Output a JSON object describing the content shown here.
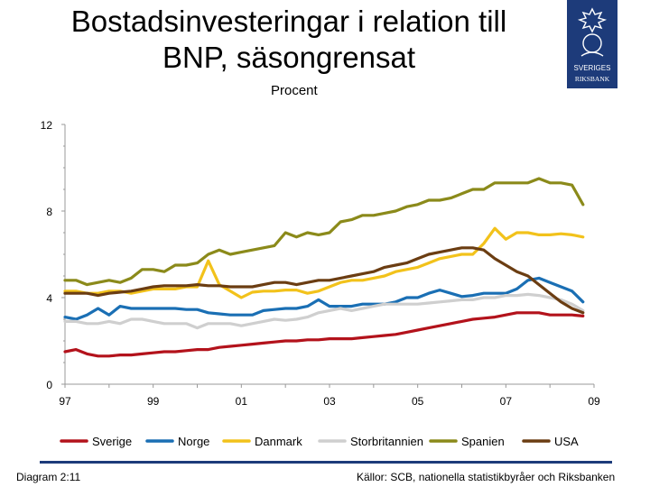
{
  "header": {
    "title_line1": "Bostadsinvesteringar i relation till",
    "title_line2": "BNP, säsongrensat",
    "unit": "Procent"
  },
  "logo": {
    "text_line1": "SVERIGES",
    "text_line2": "RIKSBANK"
  },
  "footer": {
    "diagram_label": "Diagram 2:11",
    "sources": "Källor: SCB, nationella statistikbyråer och Riksbanken"
  },
  "colors": {
    "Sverige": "#b3121b",
    "Norge": "#1a6fb4",
    "Danmark": "#f2c21b",
    "Storbritannien": "#cfcfcf",
    "Spanien": "#8b8a1a",
    "USA": "#6b3d12",
    "axis": "#999999",
    "brand": "#1d3b7a"
  },
  "chart_data": {
    "type": "line",
    "title": "Bostadsinvesteringar i relation till BNP, säsongrensat",
    "ylabel": "Procent",
    "xlabel": "",
    "xlim": [
      1997,
      2009
    ],
    "ylim": [
      0,
      12
    ],
    "x_ticks": [
      1997,
      1999,
      2001,
      2003,
      2005,
      2007,
      2009
    ],
    "x_tick_labels": [
      "97",
      "99",
      "01",
      "03",
      "05",
      "07",
      "09"
    ],
    "y_ticks": [
      0,
      4,
      8,
      12
    ],
    "y_tick_labels": [
      "0",
      "4",
      "8",
      "12"
    ],
    "legend_position": "bottom",
    "x": [
      1997.0,
      1997.25,
      1997.5,
      1997.75,
      1998.0,
      1998.25,
      1998.5,
      1998.75,
      1999.0,
      1999.25,
      1999.5,
      1999.75,
      2000.0,
      2000.25,
      2000.5,
      2000.75,
      2001.0,
      2001.25,
      2001.5,
      2001.75,
      2002.0,
      2002.25,
      2002.5,
      2002.75,
      2003.0,
      2003.25,
      2003.5,
      2003.75,
      2004.0,
      2004.25,
      2004.5,
      2004.75,
      2005.0,
      2005.25,
      2005.5,
      2005.75,
      2006.0,
      2006.25,
      2006.5,
      2006.75,
      2007.0,
      2007.25,
      2007.5,
      2007.75,
      2008.0,
      2008.25,
      2008.5,
      2008.75
    ],
    "series": [
      {
        "name": "Sverige",
        "values": [
          1.5,
          1.6,
          1.4,
          1.3,
          1.3,
          1.35,
          1.35,
          1.4,
          1.45,
          1.5,
          1.5,
          1.55,
          1.6,
          1.6,
          1.7,
          1.75,
          1.8,
          1.85,
          1.9,
          1.95,
          2.0,
          2.0,
          2.05,
          2.05,
          2.1,
          2.1,
          2.1,
          2.15,
          2.2,
          2.25,
          2.3,
          2.4,
          2.5,
          2.6,
          2.7,
          2.8,
          2.9,
          3.0,
          3.05,
          3.1,
          3.2,
          3.3,
          3.3,
          3.3,
          3.2,
          3.2,
          3.2,
          3.15
        ]
      },
      {
        "name": "Norge",
        "values": [
          3.1,
          3.0,
          3.2,
          3.5,
          3.2,
          3.6,
          3.5,
          3.5,
          3.5,
          3.5,
          3.5,
          3.45,
          3.45,
          3.3,
          3.25,
          3.2,
          3.2,
          3.2,
          3.4,
          3.45,
          3.5,
          3.5,
          3.6,
          3.9,
          3.6,
          3.6,
          3.6,
          3.7,
          3.7,
          3.7,
          3.8,
          4.0,
          4.0,
          4.2,
          4.35,
          4.2,
          4.05,
          4.1,
          4.2,
          4.2,
          4.2,
          4.4,
          4.8,
          4.9,
          4.7,
          4.5,
          4.3,
          3.8
        ]
      },
      {
        "name": "Danmark",
        "values": [
          4.3,
          4.3,
          4.2,
          4.2,
          4.3,
          4.3,
          4.2,
          4.3,
          4.4,
          4.4,
          4.4,
          4.5,
          4.5,
          5.7,
          4.6,
          4.3,
          4.0,
          4.25,
          4.3,
          4.3,
          4.35,
          4.35,
          4.2,
          4.3,
          4.5,
          4.7,
          4.8,
          4.8,
          4.9,
          5.0,
          5.2,
          5.3,
          5.4,
          5.6,
          5.8,
          5.9,
          6.0,
          6.0,
          6.5,
          7.2,
          6.7,
          7.0,
          7.0,
          6.9,
          6.9,
          6.95,
          6.9,
          6.8
        ]
      },
      {
        "name": "Storbritannien",
        "values": [
          2.9,
          2.9,
          2.8,
          2.8,
          2.9,
          2.8,
          3.0,
          3.0,
          2.9,
          2.8,
          2.8,
          2.8,
          2.6,
          2.8,
          2.8,
          2.8,
          2.7,
          2.8,
          2.9,
          3.0,
          2.95,
          3.0,
          3.1,
          3.3,
          3.4,
          3.5,
          3.4,
          3.5,
          3.6,
          3.7,
          3.7,
          3.7,
          3.7,
          3.75,
          3.8,
          3.85,
          3.9,
          3.9,
          4.0,
          4.0,
          4.1,
          4.1,
          4.15,
          4.1,
          4.0,
          3.9,
          3.7,
          3.4
        ]
      },
      {
        "name": "Spanien",
        "values": [
          4.8,
          4.8,
          4.6,
          4.7,
          4.8,
          4.7,
          4.9,
          5.3,
          5.3,
          5.2,
          5.5,
          5.5,
          5.6,
          6.0,
          6.2,
          6.0,
          6.1,
          6.2,
          6.3,
          6.4,
          7.0,
          6.8,
          7.0,
          6.9,
          7.0,
          7.5,
          7.6,
          7.8,
          7.8,
          7.9,
          8.0,
          8.2,
          8.3,
          8.5,
          8.5,
          8.6,
          8.8,
          9.0,
          9.0,
          9.3,
          9.3,
          9.3,
          9.3,
          9.5,
          9.3,
          9.3,
          9.2,
          8.3
        ]
      },
      {
        "name": "USA",
        "values": [
          4.2,
          4.2,
          4.2,
          4.1,
          4.2,
          4.25,
          4.3,
          4.4,
          4.5,
          4.55,
          4.55,
          4.55,
          4.6,
          4.55,
          4.55,
          4.5,
          4.5,
          4.5,
          4.6,
          4.7,
          4.7,
          4.6,
          4.7,
          4.8,
          4.8,
          4.9,
          5.0,
          5.1,
          5.2,
          5.4,
          5.5,
          5.6,
          5.8,
          6.0,
          6.1,
          6.2,
          6.3,
          6.3,
          6.2,
          5.8,
          5.5,
          5.2,
          5.0,
          4.6,
          4.2,
          3.8,
          3.5,
          3.3
        ]
      }
    ]
  }
}
